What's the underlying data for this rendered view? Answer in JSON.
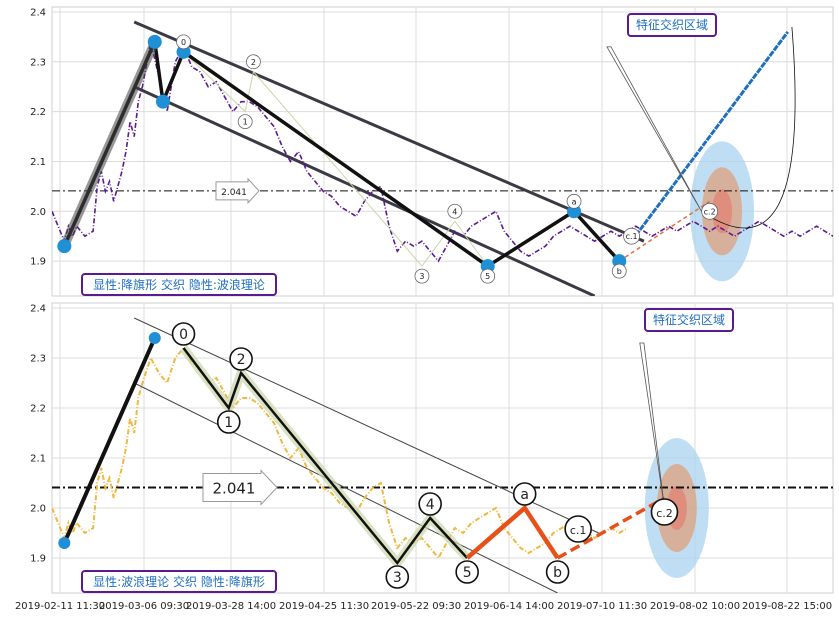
{
  "chart_data": [
    {
      "type": "line",
      "panel": "top",
      "ylim": [
        1.83,
        2.41
      ],
      "yticks": [
        1.9,
        2.0,
        2.1,
        2.2,
        2.3,
        2.4
      ],
      "price_series": {
        "color": "#5b1a8f",
        "x": [
          0,
          2,
          3,
          4,
          5,
          6,
          8,
          10,
          11,
          12,
          13,
          14,
          15,
          16,
          17,
          18,
          19,
          20,
          21,
          22,
          24,
          26,
          28,
          30,
          32,
          34,
          36,
          38,
          40,
          42,
          44,
          46,
          48,
          50,
          52,
          54,
          55,
          56,
          58,
          60,
          62,
          64,
          66,
          68,
          70,
          72,
          74,
          76,
          78,
          80,
          82,
          84,
          86,
          88,
          90,
          92,
          94,
          96,
          98,
          100,
          102,
          104,
          106,
          108,
          110,
          112,
          114,
          116,
          118,
          120,
          122,
          124,
          126,
          128,
          130,
          132,
          134,
          136,
          138,
          140,
          142,
          144,
          146,
          148,
          150,
          152,
          154,
          156,
          158,
          160,
          162,
          164,
          166,
          168,
          170,
          172,
          174,
          176,
          178,
          180,
          182,
          184,
          186,
          188,
          190
        ],
        "y": [
          2.0,
          1.96,
          1.94,
          1.97,
          1.95,
          1.97,
          1.95,
          1.96,
          2.05,
          2.08,
          2.04,
          2.06,
          2.02,
          2.05,
          2.08,
          2.12,
          2.18,
          2.15,
          2.22,
          2.25,
          2.34,
          2.27,
          2.2,
          2.3,
          2.33,
          2.29,
          2.28,
          2.25,
          2.26,
          2.23,
          2.2,
          2.22,
          2.22,
          2.21,
          2.19,
          2.17,
          2.15,
          2.13,
          2.1,
          2.12,
          2.08,
          2.06,
          2.04,
          2.03,
          2.01,
          2.0,
          1.99,
          2.02,
          2.04,
          2.05,
          1.97,
          1.92,
          1.94,
          1.93,
          1.94,
          1.92,
          1.9,
          1.93,
          1.96,
          1.95,
          1.97,
          1.98,
          1.99,
          2.0,
          1.96,
          1.94,
          1.92,
          1.91,
          1.92,
          1.93,
          1.95,
          1.96,
          1.97,
          1.96,
          1.95,
          1.94,
          1.95,
          1.96,
          1.95,
          1.96,
          1.97,
          1.96,
          1.95,
          1.96,
          1.97,
          1.96,
          1.97,
          1.98,
          1.97,
          1.96,
          1.97,
          1.96,
          1.95,
          1.96,
          1.97,
          1.98,
          1.97,
          1.96,
          1.95,
          1.96,
          1.95,
          1.96,
          1.97,
          1.96,
          1.95
        ]
      },
      "pattern_points": [
        {
          "x": 3,
          "y": 1.93
        },
        {
          "x": 25,
          "y": 2.34
        },
        {
          "x": 27,
          "y": 2.22
        },
        {
          "x": 32,
          "y": 2.32
        },
        {
          "x": 106,
          "y": 1.89
        },
        {
          "x": 127,
          "y": 2.0
        },
        {
          "x": 138,
          "y": 1.9
        }
      ],
      "wave_points": [
        {
          "x": 32,
          "y": 2.32,
          "label": "0"
        },
        {
          "x": 47,
          "y": 2.2,
          "label": "1"
        },
        {
          "x": 49,
          "y": 2.28,
          "label": "2"
        },
        {
          "x": 90,
          "y": 1.89,
          "label": "3"
        },
        {
          "x": 98,
          "y": 1.98,
          "label": "4"
        },
        {
          "x": 106,
          "y": 1.89,
          "label": "5"
        },
        {
          "x": 127,
          "y": 2.0,
          "label": "a"
        },
        {
          "x": 138,
          "y": 1.9,
          "label": "b"
        },
        {
          "x": 141,
          "y": 1.93,
          "label": "c.1"
        },
        {
          "x": 160,
          "y": 2.02,
          "label": "c.2"
        }
      ],
      "channel_upper": [
        {
          "x": 20,
          "y": 2.38
        },
        {
          "x": 144,
          "y": 1.94
        }
      ],
      "channel_lower": [
        {
          "x": 20,
          "y": 2.25
        },
        {
          "x": 132,
          "y": 1.83
        }
      ],
      "hline": {
        "y": 2.041,
        "label": "2.041"
      },
      "title_box": "特征交织区域",
      "note": "显性:降旗形 交织 隐性:波浪理论"
    },
    {
      "type": "line",
      "panel": "bottom",
      "ylim": [
        1.83,
        2.41
      ],
      "yticks": [
        1.9,
        2.0,
        2.1,
        2.2,
        2.3,
        2.4
      ],
      "xticks": [
        "2019-02-11 11:30",
        "2019-03-06 09:30",
        "2019-03-28 14:00",
        "2019-04-25 11:30",
        "2019-05-22 09:30",
        "2019-06-14 14:00",
        "2019-07-10 11:30",
        "2019-08-02 10:00",
        "2019-08-22 15:00"
      ],
      "price_series": {
        "color": "#f0b840",
        "x": [
          0,
          2,
          3,
          4,
          5,
          6,
          8,
          10,
          11,
          12,
          13,
          14,
          15,
          16,
          17,
          18,
          19,
          20,
          21,
          22,
          24,
          26,
          28,
          30,
          32,
          34,
          36,
          38,
          40,
          42,
          44,
          46,
          48,
          50,
          52,
          54,
          55,
          56,
          58,
          60,
          62,
          64,
          66,
          68,
          70,
          72,
          74,
          76,
          78,
          80,
          82,
          84,
          86,
          88,
          90,
          92,
          94,
          96,
          98,
          100,
          102,
          104,
          106,
          108,
          110,
          112,
          114,
          116,
          118,
          120,
          122,
          124,
          126,
          128,
          130,
          132,
          134,
          136,
          138,
          140
        ],
        "y": [
          2.0,
          1.96,
          1.94,
          1.97,
          1.95,
          1.97,
          1.95,
          1.96,
          2.05,
          2.08,
          2.04,
          2.06,
          2.02,
          2.05,
          2.08,
          2.12,
          2.18,
          2.15,
          2.22,
          2.25,
          2.3,
          2.27,
          2.25,
          2.3,
          2.32,
          2.29,
          2.28,
          2.25,
          2.26,
          2.23,
          2.2,
          2.22,
          2.22,
          2.21,
          2.19,
          2.17,
          2.15,
          2.13,
          2.1,
          2.12,
          2.08,
          2.06,
          2.04,
          2.03,
          2.01,
          2.0,
          1.99,
          2.02,
          2.04,
          2.05,
          1.97,
          1.92,
          1.94,
          1.93,
          1.94,
          1.92,
          1.9,
          1.93,
          1.96,
          1.95,
          1.97,
          1.98,
          1.99,
          2.0,
          1.96,
          1.94,
          1.92,
          1.91,
          1.92,
          1.93,
          1.95,
          1.96,
          1.97,
          1.96,
          1.95,
          1.94,
          1.95,
          1.96,
          1.95,
          1.96
        ]
      },
      "pattern_points": [
        {
          "x": 3,
          "y": 1.93
        },
        {
          "x": 25,
          "y": 2.34
        }
      ],
      "wave_points": [
        {
          "x": 32,
          "y": 2.32,
          "label": "0"
        },
        {
          "x": 43,
          "y": 2.2,
          "label": "1"
        },
        {
          "x": 46,
          "y": 2.27,
          "label": "2"
        },
        {
          "x": 84,
          "y": 1.89,
          "label": "3"
        },
        {
          "x": 92,
          "y": 1.98,
          "label": "4"
        },
        {
          "x": 101,
          "y": 1.9,
          "label": "5"
        },
        {
          "x": 115,
          "y": 2.0,
          "label": "a"
        },
        {
          "x": 123,
          "y": 1.9,
          "label": "b"
        },
        {
          "x": 128,
          "y": 1.93,
          "label": "c.1"
        },
        {
          "x": 149,
          "y": 2.02,
          "label": "c.2"
        }
      ],
      "channel_upper": [
        {
          "x": 20,
          "y": 2.38
        },
        {
          "x": 133,
          "y": 1.95
        }
      ],
      "channel_lower": [
        {
          "x": 20,
          "y": 2.25
        },
        {
          "x": 123,
          "y": 1.83
        }
      ],
      "hline": {
        "y": 2.041,
        "label": "2.041"
      },
      "title_box": "特征交织区域",
      "note": "显性:波浪理论 交织 隐性:降旗形"
    }
  ]
}
